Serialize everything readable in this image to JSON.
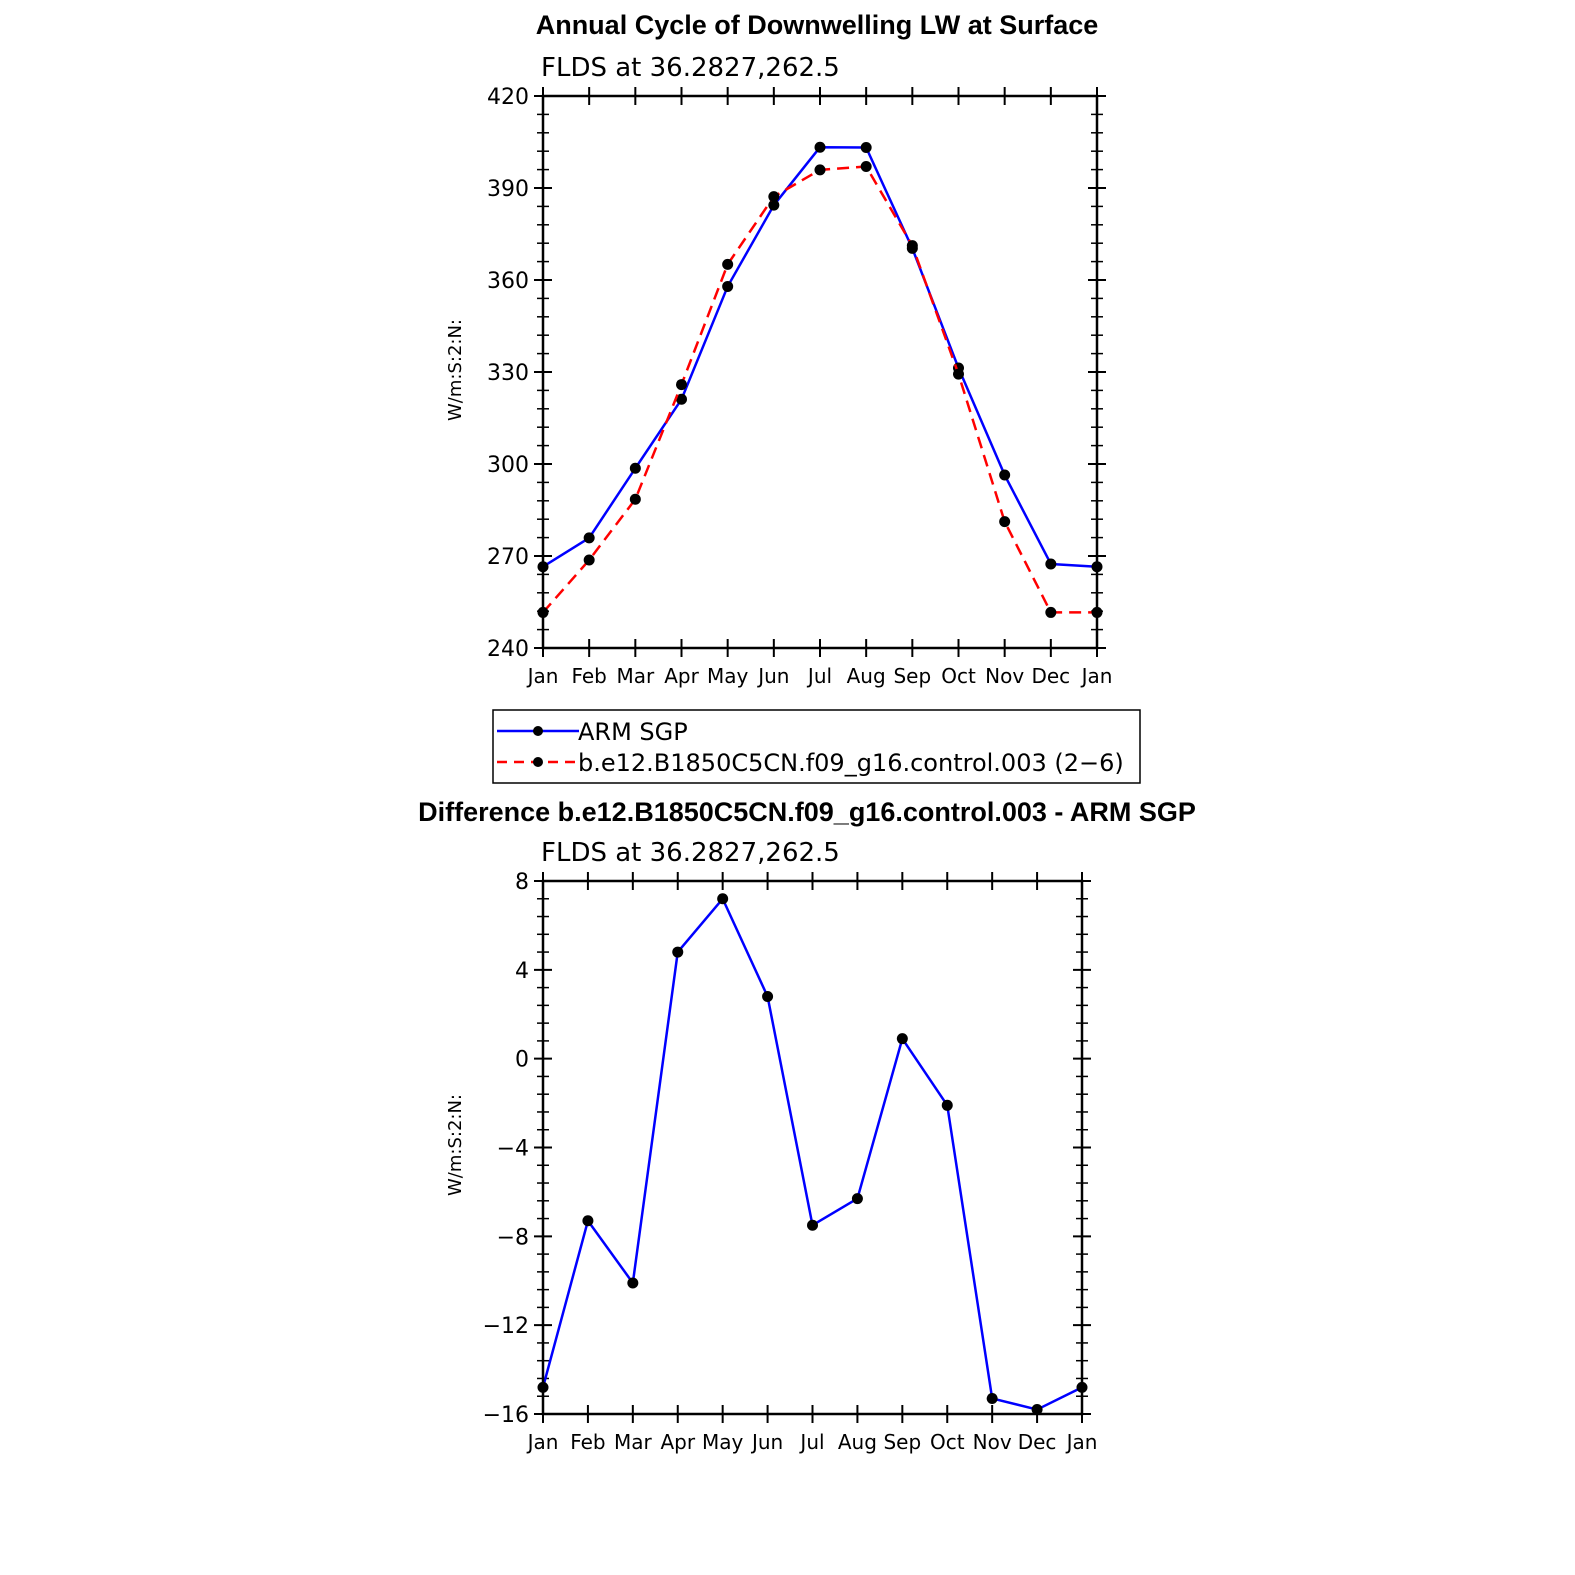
{
  "chart_data": [
    {
      "type": "line",
      "title": "Annual Cycle of Downwelling LW at Surface",
      "subtitle": "FLDS at 36.2827,262.5",
      "xlabel": "",
      "ylabel": "W/m:S:2:N:",
      "categories": [
        "Jan",
        "Feb",
        "Mar",
        "Apr",
        "May",
        "Jun",
        "Jul",
        "Aug",
        "Sep",
        "Oct",
        "Nov",
        "Dec",
        "Jan"
      ],
      "ylim": [
        240,
        420
      ],
      "yticks": [
        240,
        270,
        300,
        330,
        360,
        390,
        420
      ],
      "series": [
        {
          "name": "ARM SGP",
          "color": "#0000ff",
          "dash": "solid",
          "values": [
            266.5,
            275.9,
            298.6,
            321.1,
            357.9,
            384.4,
            403.3,
            403.2,
            370.3,
            331.3,
            296.4,
            267.4,
            266.5
          ]
        },
        {
          "name": "b.e12.B1850C5CN.f09_g16.control.003 (2−6)",
          "color": "#ff0000",
          "dash": "dashed",
          "values": [
            251.6,
            268.7,
            288.5,
            325.9,
            365.1,
            387.2,
            395.9,
            397.0,
            371.2,
            329.3,
            281.2,
            251.6,
            251.6
          ]
        }
      ],
      "legend": "bottom"
    },
    {
      "type": "line",
      "title": "Difference b.e12.B1850C5CN.f09_g16.control.003 - ARM SGP",
      "subtitle": "FLDS at 36.2827,262.5",
      "xlabel": "",
      "ylabel": "W/m:S:2:N:",
      "categories": [
        "Jan",
        "Feb",
        "Mar",
        "Apr",
        "May",
        "Jun",
        "Jul",
        "Aug",
        "Sep",
        "Oct",
        "Nov",
        "Dec",
        "Jan"
      ],
      "ylim": [
        -16,
        8
      ],
      "yticks": [
        -16,
        -12,
        -8,
        -4,
        0,
        4,
        8
      ],
      "ytick_labels": [
        "−16",
        "−12",
        "−8",
        "−4",
        "0",
        "4",
        "8"
      ],
      "series": [
        {
          "color": "#0000ff",
          "dash": "solid",
          "values": [
            -14.8,
            -7.3,
            -10.1,
            4.8,
            7.2,
            2.8,
            -7.5,
            -6.3,
            0.9,
            -2.1,
            -15.3,
            -15.8,
            -14.8
          ]
        }
      ]
    }
  ]
}
